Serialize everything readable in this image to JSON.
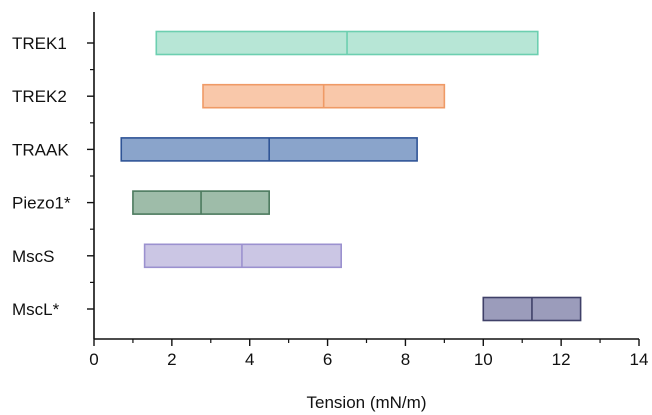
{
  "chart_data": {
    "type": "floating-bar",
    "title": "",
    "xlabel": "Tension (mN/m)",
    "ylabel": "",
    "xlim": [
      0,
      14
    ],
    "x_major_ticks": [
      0,
      2,
      4,
      6,
      8,
      10,
      12,
      14
    ],
    "x_tick_labels": [
      "0",
      "2",
      "4",
      "6",
      "8",
      "10",
      "12",
      "14"
    ],
    "x_minor_ticks": [
      1,
      3,
      5,
      7,
      9,
      11,
      13
    ],
    "grid": false,
    "categories": [
      "TREK1",
      "TREK2",
      "TRAAK",
      "Piezo1*",
      "MscS",
      "MscL*"
    ],
    "bars": [
      {
        "label": "TREK1",
        "start": 1.6,
        "mid": 6.5,
        "end": 11.4,
        "fill": "#b7e6d6",
        "stroke": "#6ccfb0"
      },
      {
        "label": "TREK2",
        "start": 2.8,
        "mid": 5.9,
        "end": 9.0,
        "fill": "#f9c8aa",
        "stroke": "#ef9a66"
      },
      {
        "label": "TRAAK",
        "start": 0.7,
        "mid": 4.5,
        "end": 8.3,
        "fill": "#8aa4cb",
        "stroke": "#2f5496"
      },
      {
        "label": "Piezo1*",
        "start": 1.0,
        "mid": 2.75,
        "end": 4.5,
        "fill": "#9ebca9",
        "stroke": "#4c7a5e"
      },
      {
        "label": "MscS",
        "start": 1.3,
        "mid": 3.8,
        "end": 6.35,
        "fill": "#cbc6e4",
        "stroke": "#9b91cf"
      },
      {
        "label": "MscL*",
        "start": 10.0,
        "mid": 11.25,
        "end": 12.5,
        "fill": "#9b9cbb",
        "stroke": "#3f4068"
      }
    ]
  }
}
